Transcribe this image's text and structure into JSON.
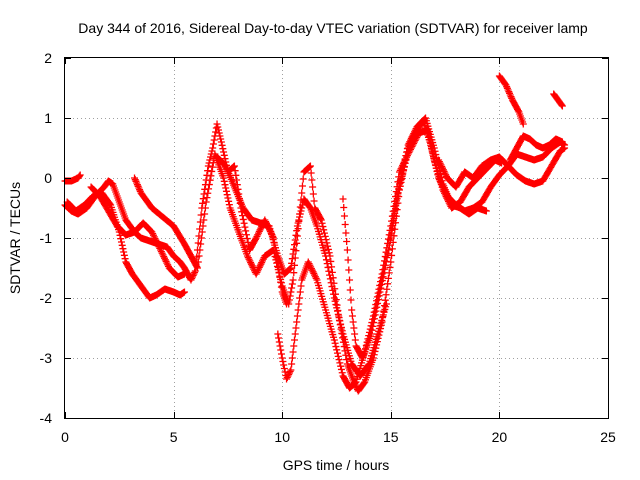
{
  "chart_data": {
    "type": "scatter",
    "title": "Day 344 of 2016, Sidereal Day-to-day VTEC variation (SDTVAR) for receiver lamp",
    "xlabel": "GPS time / hours",
    "ylabel": "SDTVAR / TECUs",
    "xlim": [
      0,
      25
    ],
    "ylim": [
      -4,
      2
    ],
    "xticks": [
      "0",
      "5",
      "10",
      "15",
      "20",
      "25"
    ],
    "yticks": [
      "-4",
      "-3",
      "-2",
      "-1",
      "0",
      "1",
      "2"
    ],
    "grid": true,
    "marker": "plus",
    "color": "#ff0000",
    "series": [
      {
        "points": [
          [
            0,
            -0.45
          ],
          [
            0.3,
            -0.55
          ],
          [
            0.6,
            -0.6
          ],
          [
            1.0,
            -0.5
          ],
          [
            1.4,
            -0.3
          ],
          [
            1.8,
            -0.15
          ],
          [
            2.0,
            -0.05
          ],
          [
            2.2,
            -0.1
          ],
          [
            2.5,
            -0.4
          ],
          [
            2.8,
            -0.7
          ],
          [
            3.2,
            -0.9
          ],
          [
            3.5,
            -1.0
          ],
          [
            3.9,
            -1.05
          ],
          [
            4.3,
            -1.1
          ],
          [
            4.7,
            -1.15
          ],
          [
            5.0,
            -1.3
          ],
          [
            5.3,
            -1.4
          ],
          [
            5.5,
            -1.5
          ],
          [
            5.8,
            -1.7
          ],
          [
            6.0,
            -1.55
          ],
          [
            6.3,
            -0.5
          ],
          [
            6.6,
            0.2
          ],
          [
            6.8,
            0.5
          ],
          [
            7.0,
            0.9
          ],
          [
            7.2,
            0.6
          ],
          [
            7.5,
            0.1
          ],
          [
            7.8,
            0.2
          ],
          [
            8.1,
            -0.5
          ],
          [
            8.5,
            -1.2
          ],
          [
            8.8,
            -1.0
          ],
          [
            9.2,
            -0.7
          ],
          [
            9.6,
            -1.0
          ],
          [
            10.0,
            -1.9
          ],
          [
            10.2,
            -2.1
          ]
        ]
      },
      {
        "points": [
          [
            0,
            -0.05
          ],
          [
            0.3,
            -0.05
          ],
          [
            0.6,
            0.0
          ],
          [
            0.7,
            0.05
          ]
        ]
      },
      {
        "points": [
          [
            0.1,
            -0.4
          ],
          [
            0.5,
            -0.55
          ],
          [
            0.9,
            -0.45
          ],
          [
            1.3,
            -0.3
          ],
          [
            1.7,
            -0.25
          ],
          [
            2.1,
            -0.45
          ],
          [
            2.5,
            -0.9
          ],
          [
            2.8,
            -1.4
          ],
          [
            3.1,
            -1.6
          ],
          [
            3.5,
            -1.8
          ],
          [
            3.9,
            -2.0
          ],
          [
            4.2,
            -1.95
          ],
          [
            4.6,
            -1.85
          ],
          [
            5.0,
            -1.9
          ],
          [
            5.3,
            -1.95
          ],
          [
            5.5,
            -1.9
          ]
        ]
      },
      {
        "points": [
          [
            1.2,
            -0.15
          ],
          [
            1.6,
            -0.3
          ],
          [
            2.0,
            -0.55
          ],
          [
            2.4,
            -0.8
          ],
          [
            2.8,
            -0.95
          ],
          [
            3.2,
            -0.9
          ],
          [
            3.6,
            -0.75
          ],
          [
            4.0,
            -0.9
          ],
          [
            4.4,
            -1.2
          ],
          [
            4.8,
            -1.5
          ],
          [
            5.2,
            -1.65
          ],
          [
            5.5,
            -1.6
          ]
        ]
      },
      {
        "points": [
          [
            3.2,
            0.0
          ],
          [
            3.5,
            -0.25
          ],
          [
            4.0,
            -0.5
          ],
          [
            4.5,
            -0.65
          ],
          [
            5.0,
            -0.8
          ],
          [
            5.5,
            -1.1
          ],
          [
            5.8,
            -1.3
          ],
          [
            6.1,
            -1.5
          ],
          [
            6.5,
            -0.4
          ],
          [
            6.9,
            0.4
          ],
          [
            7.3,
            0.0
          ],
          [
            7.6,
            -0.5
          ],
          [
            8.0,
            -0.9
          ],
          [
            8.4,
            -1.3
          ],
          [
            8.8,
            -1.6
          ],
          [
            9.2,
            -1.3
          ],
          [
            9.6,
            -1.2
          ],
          [
            10.0,
            -1.8
          ],
          [
            10.3,
            -2.1
          ],
          [
            10.5,
            -1.7
          ],
          [
            10.8,
            -0.6
          ],
          [
            11.0,
            0.1
          ],
          [
            11.3,
            0.2
          ],
          [
            11.5,
            -0.5
          ],
          [
            11.8,
            -0.7
          ],
          [
            12.2,
            -1.3
          ],
          [
            12.6,
            -2.3
          ],
          [
            13.0,
            -3.1
          ],
          [
            13.3,
            -3.4
          ],
          [
            13.5,
            -3.55
          ],
          [
            13.8,
            -3.4
          ],
          [
            14.2,
            -3.0
          ],
          [
            14.6,
            -2.4
          ],
          [
            15.0,
            -1.4
          ],
          [
            15.4,
            -0.2
          ],
          [
            15.8,
            0.5
          ],
          [
            16.2,
            0.8
          ],
          [
            16.5,
            0.95
          ],
          [
            16.8,
            0.6
          ],
          [
            17.2,
            0.0
          ],
          [
            17.6,
            -0.3
          ],
          [
            18.0,
            -0.45
          ],
          [
            18.4,
            -0.55
          ],
          [
            18.8,
            -0.5
          ],
          [
            19.2,
            -0.4
          ],
          [
            19.6,
            -0.15
          ],
          [
            20.0,
            0.05
          ],
          [
            20.4,
            0.2
          ],
          [
            20.8,
            0.4
          ],
          [
            21.2,
            0.35
          ],
          [
            21.6,
            0.3
          ],
          [
            22.0,
            0.35
          ],
          [
            22.4,
            0.5
          ],
          [
            22.8,
            0.6
          ],
          [
            23.0,
            0.55
          ]
        ]
      },
      {
        "points": [
          [
            7.0,
            0.35
          ],
          [
            7.4,
            0.2
          ],
          [
            7.8,
            -0.15
          ],
          [
            8.2,
            -0.5
          ],
          [
            8.6,
            -0.7
          ],
          [
            9.0,
            -0.75
          ],
          [
            9.4,
            -0.8
          ],
          [
            9.8,
            -1.3
          ],
          [
            10.1,
            -1.6
          ],
          [
            10.4,
            -1.5
          ],
          [
            10.7,
            -0.8
          ],
          [
            11.0,
            -0.35
          ],
          [
            11.3,
            -0.5
          ],
          [
            11.6,
            -0.8
          ],
          [
            12.0,
            -1.3
          ],
          [
            12.4,
            -2.0
          ],
          [
            12.8,
            -2.6
          ],
          [
            13.2,
            -3.1
          ],
          [
            13.6,
            -3.3
          ],
          [
            14.0,
            -3.1
          ],
          [
            14.4,
            -2.6
          ],
          [
            14.8,
            -2.1
          ]
        ]
      },
      {
        "points": [
          [
            9.8,
            -2.6
          ],
          [
            10.0,
            -3.0
          ],
          [
            10.2,
            -3.35
          ],
          [
            10.4,
            -3.2
          ],
          [
            10.6,
            -2.6
          ],
          [
            10.9,
            -1.7
          ],
          [
            11.2,
            -1.4
          ],
          [
            11.6,
            -1.7
          ],
          [
            12.0,
            -2.2
          ],
          [
            12.4,
            -2.7
          ],
          [
            12.8,
            -3.3
          ],
          [
            13.1,
            -3.5
          ],
          [
            13.4,
            -3.4
          ],
          [
            13.8,
            -2.9
          ],
          [
            14.2,
            -2.3
          ],
          [
            14.6,
            -1.6
          ],
          [
            15.0,
            -0.8
          ],
          [
            15.4,
            0.1
          ],
          [
            15.8,
            0.4
          ],
          [
            16.3,
            0.75
          ],
          [
            16.7,
            0.8
          ],
          [
            17.0,
            0.3
          ],
          [
            17.4,
            -0.2
          ],
          [
            17.8,
            -0.5
          ],
          [
            18.2,
            -0.4
          ],
          [
            18.6,
            -0.15
          ],
          [
            19.0,
            0.0
          ],
          [
            19.4,
            0.15
          ],
          [
            19.8,
            0.3
          ],
          [
            20.1,
            0.25
          ]
        ]
      },
      {
        "points": [
          [
            12.8,
            -0.35
          ],
          [
            13.0,
            -1.2
          ],
          [
            13.2,
            -2.2
          ],
          [
            13.4,
            -2.8
          ],
          [
            13.7,
            -3.0
          ],
          [
            14.1,
            -2.6
          ],
          [
            14.5,
            -1.9
          ],
          [
            14.9,
            -1.2
          ],
          [
            15.3,
            -0.3
          ],
          [
            15.7,
            0.3
          ]
        ]
      },
      {
        "points": [
          [
            15.0,
            -1.0
          ],
          [
            15.4,
            -0.1
          ],
          [
            15.8,
            0.55
          ],
          [
            16.2,
            0.85
          ],
          [
            16.6,
            1.0
          ],
          [
            17.0,
            0.5
          ],
          [
            17.4,
            -0.1
          ],
          [
            17.8,
            -0.45
          ],
          [
            18.2,
            -0.5
          ],
          [
            18.6,
            -0.6
          ],
          [
            19.0,
            -0.5
          ],
          [
            19.4,
            -0.55
          ]
        ]
      },
      {
        "points": [
          [
            17.2,
            0.3
          ],
          [
            17.6,
            0.0
          ],
          [
            18.0,
            -0.15
          ],
          [
            18.4,
            0.1
          ],
          [
            18.8,
            0.0
          ],
          [
            19.2,
            0.2
          ],
          [
            19.6,
            0.3
          ],
          [
            20.0,
            0.35
          ],
          [
            20.4,
            0.2
          ],
          [
            20.8,
            0.05
          ],
          [
            21.2,
            -0.05
          ],
          [
            21.6,
            -0.1
          ],
          [
            22.0,
            -0.05
          ],
          [
            22.4,
            0.2
          ],
          [
            22.8,
            0.45
          ],
          [
            23.0,
            0.5
          ]
        ]
      },
      {
        "points": [
          [
            20.0,
            1.7
          ],
          [
            20.3,
            1.55
          ],
          [
            20.6,
            1.3
          ],
          [
            20.9,
            1.1
          ],
          [
            21.1,
            0.9
          ]
        ]
      },
      {
        "points": [
          [
            20.5,
            0.3
          ],
          [
            20.8,
            0.5
          ],
          [
            21.1,
            0.7
          ],
          [
            21.4,
            0.65
          ],
          [
            21.7,
            0.55
          ],
          [
            22.0,
            0.5
          ],
          [
            22.3,
            0.55
          ],
          [
            22.6,
            0.65
          ],
          [
            22.9,
            0.6
          ]
        ]
      },
      {
        "points": [
          [
            22.5,
            1.4
          ],
          [
            22.7,
            1.3
          ],
          [
            22.9,
            1.2
          ]
        ]
      }
    ]
  }
}
